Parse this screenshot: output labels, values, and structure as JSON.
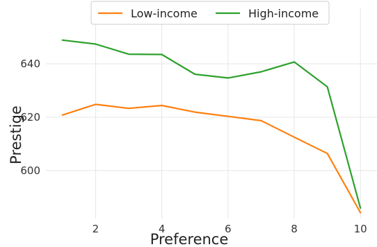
{
  "chart_data": {
    "type": "line",
    "title": "",
    "xlabel": "Preference",
    "ylabel": "Prestige",
    "x": [
      1,
      2,
      3,
      4,
      5,
      6,
      7,
      8,
      9,
      10
    ],
    "xticks": [
      2,
      4,
      6,
      8,
      10
    ],
    "yticks": [
      600,
      620,
      640
    ],
    "xlim": [
      0.5,
      10.5
    ],
    "ylim": [
      582,
      653
    ],
    "grid": true,
    "legend_position": "top-center",
    "series": [
      {
        "name": "Low-income",
        "color": "#ff7f0e",
        "values": [
          620.8,
          624.8,
          623.3,
          624.4,
          621.9,
          620.3,
          618.7,
          612.5,
          606.4,
          584.2
        ]
      },
      {
        "name": "High-income",
        "color": "#2ca02c",
        "values": [
          648.9,
          647.4,
          643.6,
          643.5,
          636.1,
          634.7,
          637.0,
          640.7,
          631.4,
          585.9
        ]
      }
    ]
  }
}
